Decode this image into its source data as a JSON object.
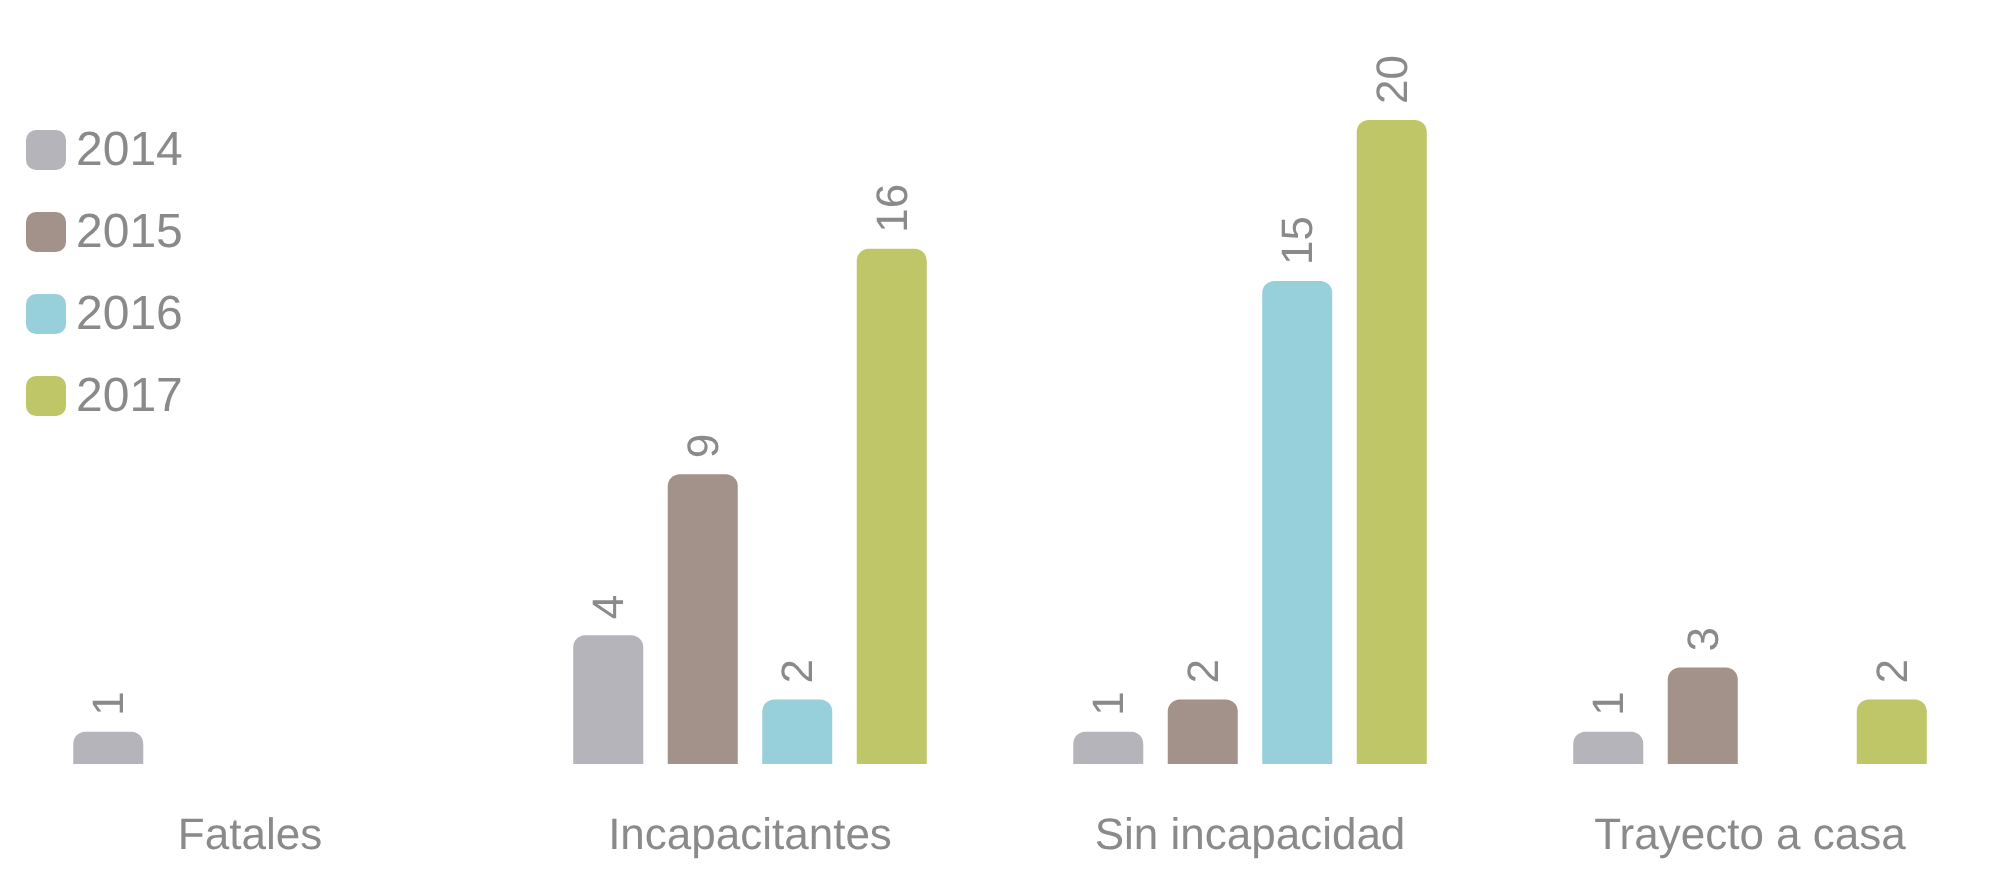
{
  "chart_data": {
    "type": "bar",
    "categories": [
      "Fatales",
      "Incapacitantes",
      "Sin incapacidad",
      "Trayecto a casa"
    ],
    "series": [
      {
        "name": "2014",
        "color": "#b5b4ba",
        "values": [
          1,
          4,
          1,
          1
        ]
      },
      {
        "name": "2015",
        "color": "#a39289",
        "values": [
          null,
          9,
          2,
          3
        ]
      },
      {
        "name": "2016",
        "color": "#97d0da",
        "values": [
          null,
          2,
          15,
          null
        ]
      },
      {
        "name": "2017",
        "color": "#bec667",
        "values": [
          null,
          16,
          20,
          2
        ]
      }
    ],
    "data_labels": true,
    "legend": "top left",
    "grid": false
  }
}
